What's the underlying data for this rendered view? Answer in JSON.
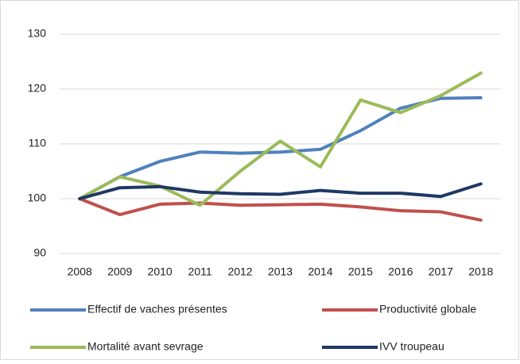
{
  "chart_data": {
    "type": "line",
    "categories": [
      "2008",
      "2009",
      "2010",
      "2011",
      "2012",
      "2013",
      "2014",
      "2015",
      "2016",
      "2017",
      "2018"
    ],
    "series": [
      {
        "name": "Effectif de vaches présentes",
        "color": "#4f81bd",
        "values": [
          100,
          104,
          106.8,
          108.5,
          108.3,
          108.5,
          109,
          112.4,
          116.5,
          118.3,
          118.4
        ]
      },
      {
        "name": "Productivité globale",
        "color": "#c0504d",
        "values": [
          100,
          97.1,
          99,
          99.2,
          98.8,
          98.9,
          99,
          98.5,
          97.8,
          97.6,
          96.1
        ]
      },
      {
        "name": "Mortalité avant sevrage",
        "color": "#9bbb59",
        "values": [
          100,
          104,
          102.3,
          98.8,
          105,
          110.5,
          105.8,
          118,
          115.7,
          118.8,
          122.9
        ]
      },
      {
        "name": "IVV troupeau",
        "color": "#1f3864",
        "values": [
          100,
          102,
          102.2,
          101.2,
          100.9,
          100.8,
          101.5,
          101,
          101,
          100.4,
          102.7
        ]
      }
    ],
    "ylim": [
      90,
      130
    ],
    "yticks": [
      90,
      100,
      110,
      120,
      130
    ],
    "grid": true,
    "legend": "bottom"
  }
}
